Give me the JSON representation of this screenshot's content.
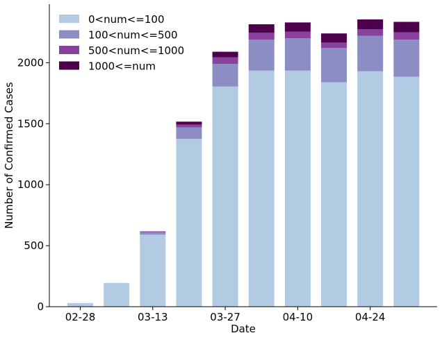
{
  "chart_data": {
    "type": "bar",
    "stacked": true,
    "title": "",
    "xlabel": "Date",
    "ylabel": "Number of Confirmed Cases",
    "ylim": [
      0,
      2480
    ],
    "yticks": [
      0,
      500,
      1000,
      1500,
      2000
    ],
    "x_tick_labels": [
      "02-28",
      "03-13",
      "03-27",
      "04-10",
      "04-24"
    ],
    "x_tick_positions": [
      0,
      2,
      4,
      6,
      8
    ],
    "categories": [
      "02-28",
      "03-06",
      "03-13",
      "03-20",
      "03-27",
      "04-03",
      "04-10",
      "04-17",
      "04-24",
      "05-01"
    ],
    "grid": false,
    "legend_position": "top-left",
    "series": [
      {
        "name": "0<num<=100",
        "color": "#b3cbe2",
        "values": [
          30,
          195,
          590,
          1375,
          1805,
          1935,
          1935,
          1840,
          1930,
          1885
        ]
      },
      {
        "name": "100<num<=500",
        "color": "#8c8dc2",
        "values": [
          0,
          0,
          20,
          95,
          185,
          255,
          265,
          280,
          290,
          305
        ]
      },
      {
        "name": "500<num<=1000",
        "color": "#88419d",
        "values": [
          0,
          0,
          8,
          22,
          55,
          55,
          55,
          45,
          55,
          60
        ]
      },
      {
        "name": "1000<=num",
        "color": "#4d004b",
        "values": [
          0,
          0,
          0,
          25,
          45,
          70,
          75,
          75,
          80,
          85
        ]
      }
    ]
  }
}
